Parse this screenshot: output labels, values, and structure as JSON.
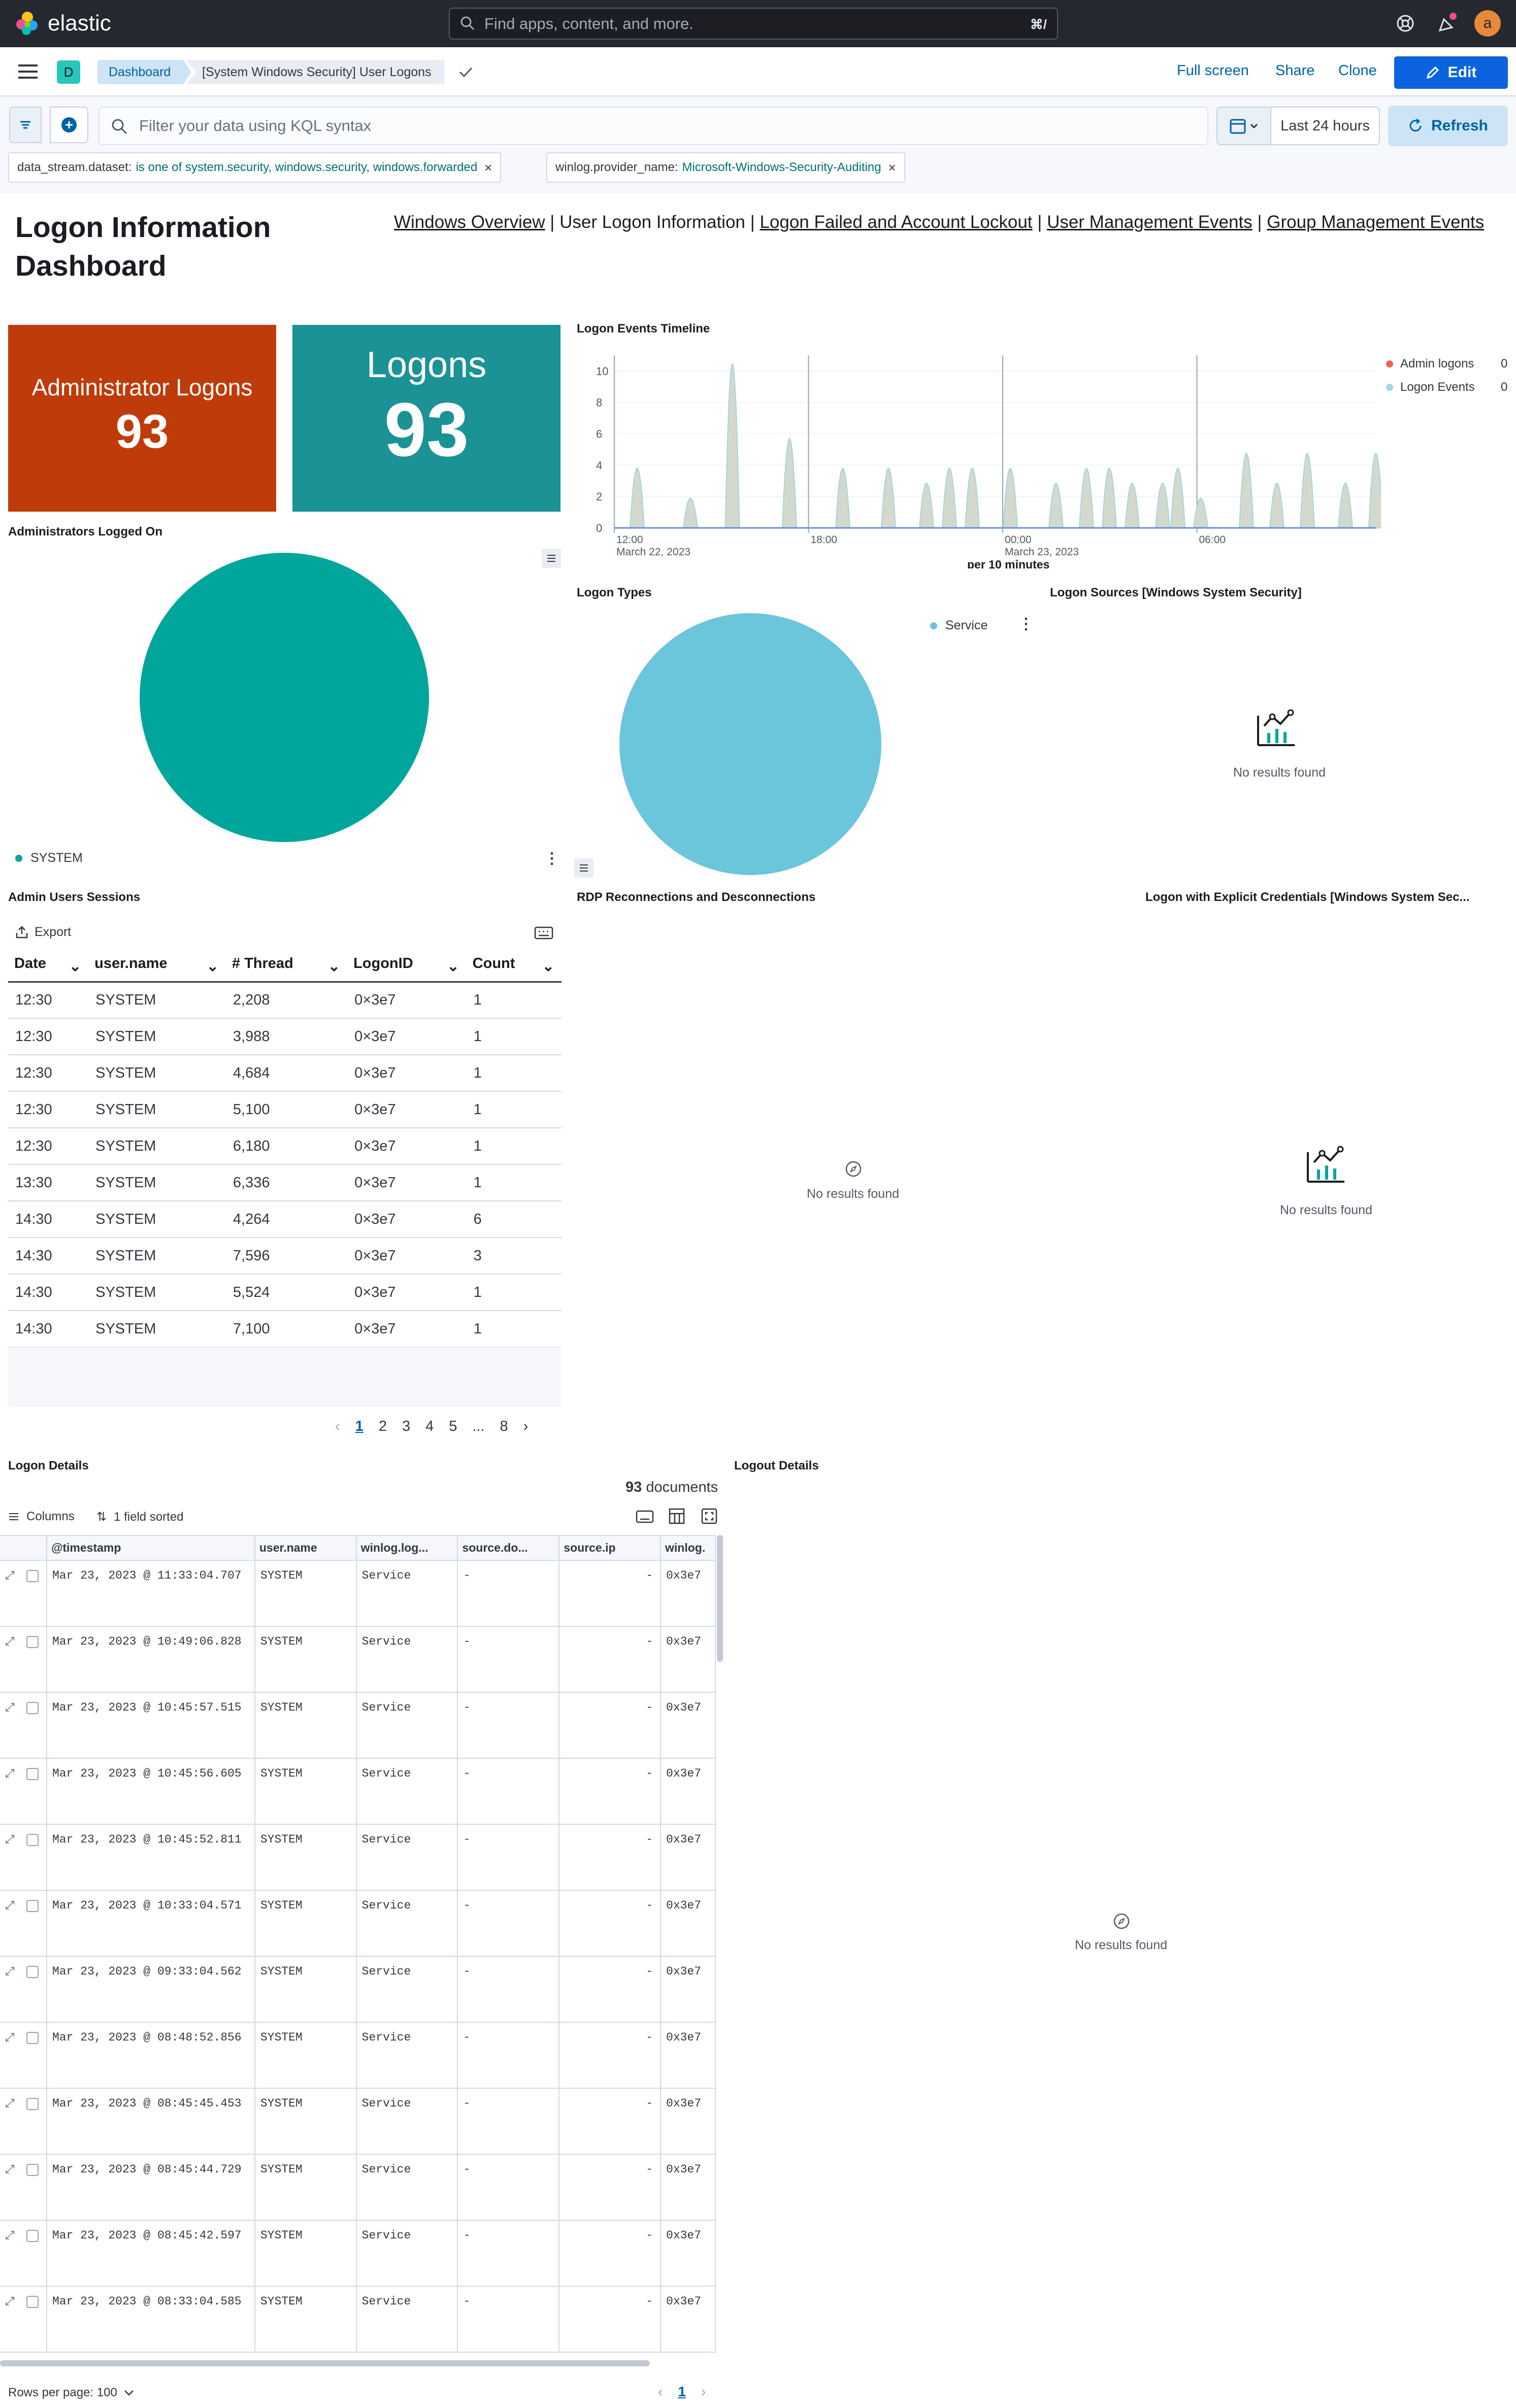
{
  "header": {
    "brand": "elastic",
    "search_placeholder": "Find apps, content, and more.",
    "search_shortcut": "⌘/",
    "avatar_initial": "a"
  },
  "nav": {
    "space_initial": "D",
    "breadcrumbs": [
      "Dashboard",
      "[System Windows Security] User Logons"
    ],
    "full_screen": "Full screen",
    "share": "Share",
    "clone": "Clone",
    "edit": "Edit"
  },
  "query": {
    "placeholder": "Filter your data using KQL syntax",
    "date_range": "Last 24 hours",
    "refresh": "Refresh",
    "filters": [
      {
        "field": "data_stream.dataset:",
        "value": "is one of system.security, windows.security, windows.forwarded"
      },
      {
        "field": "winlog.provider_name:",
        "value": "Microsoft-Windows-Security-Auditing"
      }
    ]
  },
  "markdown": {
    "title": "Logon Information Dashboard",
    "links": [
      "Windows Overview",
      "User Logon Information",
      "Logon Failed and Account Lockout",
      "User Management Events",
      "Group Management Events"
    ],
    "separator": " | "
  },
  "metrics": {
    "admin_label": "Administrator Logons",
    "admin_value": "93",
    "logons_label": "Logons",
    "logons_value": "93"
  },
  "timeline": {
    "title": "Logon Events Timeline",
    "xaxis_title": "per 10 minutes",
    "legend": [
      {
        "name": "Admin logons",
        "value": "0",
        "color": "#e7664c"
      },
      {
        "name": "Logon Events",
        "value": "0",
        "color": "#a6d5e6"
      }
    ]
  },
  "panels": {
    "admins_logged_on": "Administrators Logged On",
    "admins_legend": "SYSTEM",
    "admins_color": "#00a69b",
    "logon_types": "Logon Types",
    "logon_types_legend": "Service",
    "logon_types_color": "#6bc5db",
    "logon_sources": "Logon Sources [Windows System Security]",
    "admin_sessions": "Admin Users Sessions",
    "rdp": "RDP Reconnections and Desconnections",
    "explicit": "Logon with Explicit Credentials [Windows System Sec...",
    "logon_details": "Logon Details",
    "logout_details": "Logout Details",
    "no_results": "No results found"
  },
  "admin_table": {
    "export": "Export",
    "columns": [
      "Date",
      "user.name",
      "# Thread",
      "LogonID",
      "Count"
    ],
    "rows": [
      [
        "12:30",
        "SYSTEM",
        "2,208",
        "0×3e7",
        "1"
      ],
      [
        "12:30",
        "SYSTEM",
        "3,988",
        "0×3e7",
        "1"
      ],
      [
        "12:30",
        "SYSTEM",
        "4,684",
        "0×3e7",
        "1"
      ],
      [
        "12:30",
        "SYSTEM",
        "5,100",
        "0×3e7",
        "1"
      ],
      [
        "12:30",
        "SYSTEM",
        "6,180",
        "0×3e7",
        "1"
      ],
      [
        "13:30",
        "SYSTEM",
        "6,336",
        "0×3e7",
        "1"
      ],
      [
        "14:30",
        "SYSTEM",
        "4,264",
        "0×3e7",
        "6"
      ],
      [
        "14:30",
        "SYSTEM",
        "7,596",
        "0×3e7",
        "3"
      ],
      [
        "14:30",
        "SYSTEM",
        "5,524",
        "0×3e7",
        "1"
      ],
      [
        "14:30",
        "SYSTEM",
        "7,100",
        "0×3e7",
        "1"
      ]
    ],
    "pages": [
      "1",
      "2",
      "3",
      "4",
      "5",
      "...",
      "8"
    ]
  },
  "logon_grid": {
    "doc_count": "93",
    "doc_label": "documents",
    "columns_btn": "Columns",
    "sorted_btn": "1 field sorted",
    "columns": [
      "@timestamp",
      "user.name",
      "winlog.log...",
      "source.do...",
      "source.ip",
      "winlog."
    ],
    "rows": [
      [
        "Mar 23, 2023 @ 11:33:04.707",
        "SYSTEM",
        "Service",
        "-",
        "-",
        "0x3e7"
      ],
      [
        "Mar 23, 2023 @ 10:49:06.828",
        "SYSTEM",
        "Service",
        "-",
        "-",
        "0x3e7"
      ],
      [
        "Mar 23, 2023 @ 10:45:57.515",
        "SYSTEM",
        "Service",
        "-",
        "-",
        "0x3e7"
      ],
      [
        "Mar 23, 2023 @ 10:45:56.605",
        "SYSTEM",
        "Service",
        "-",
        "-",
        "0x3e7"
      ],
      [
        "Mar 23, 2023 @ 10:45:52.811",
        "SYSTEM",
        "Service",
        "-",
        "-",
        "0x3e7"
      ],
      [
        "Mar 23, 2023 @ 10:33:04.571",
        "SYSTEM",
        "Service",
        "-",
        "-",
        "0x3e7"
      ],
      [
        "Mar 23, 2023 @ 09:33:04.562",
        "SYSTEM",
        "Service",
        "-",
        "-",
        "0x3e7"
      ],
      [
        "Mar 23, 2023 @ 08:48:52.856",
        "SYSTEM",
        "Service",
        "-",
        "-",
        "0x3e7"
      ],
      [
        "Mar 23, 2023 @ 08:45:45.453",
        "SYSTEM",
        "Service",
        "-",
        "-",
        "0x3e7"
      ],
      [
        "Mar 23, 2023 @ 08:45:44.729",
        "SYSTEM",
        "Service",
        "-",
        "-",
        "0x3e7"
      ],
      [
        "Mar 23, 2023 @ 08:45:42.597",
        "SYSTEM",
        "Service",
        "-",
        "-",
        "0x3e7"
      ],
      [
        "Mar 23, 2023 @ 08:33:04.585",
        "SYSTEM",
        "Service",
        "-",
        "-",
        "0x3e7"
      ]
    ],
    "rows_per_page": "Rows per page: 100",
    "page": "1"
  },
  "chart_data": {
    "type": "area",
    "title": "Logon Events Timeline",
    "xlabel": "per 10 minutes",
    "ylabel": "",
    "ylim": [
      0,
      11
    ],
    "yticks": [
      0,
      2,
      4,
      6,
      8,
      10
    ],
    "xtick_labels": [
      "12:00\nMarch 22, 2023",
      "18:00",
      "00:00\nMarch 23, 2023",
      "06:00"
    ],
    "series": [
      {
        "name": "Admin logons",
        "color": "#e7664c",
        "values": [
          0
        ]
      },
      {
        "name": "Logon Events",
        "color": "#a6d5e6",
        "peaks": [
          [
            0.03,
            4
          ],
          [
            0.1,
            2
          ],
          [
            0.155,
            11
          ],
          [
            0.23,
            6
          ],
          [
            0.3,
            4
          ],
          [
            0.36,
            4
          ],
          [
            0.41,
            3
          ],
          [
            0.44,
            4
          ],
          [
            0.47,
            4
          ],
          [
            0.52,
            4
          ],
          [
            0.58,
            3
          ],
          [
            0.62,
            4
          ],
          [
            0.65,
            4
          ],
          [
            0.68,
            3
          ],
          [
            0.72,
            3
          ],
          [
            0.74,
            4
          ],
          [
            0.77,
            2
          ],
          [
            0.83,
            5
          ],
          [
            0.87,
            3
          ],
          [
            0.91,
            5
          ],
          [
            0.96,
            3
          ],
          [
            1.0,
            5
          ]
        ]
      }
    ]
  }
}
